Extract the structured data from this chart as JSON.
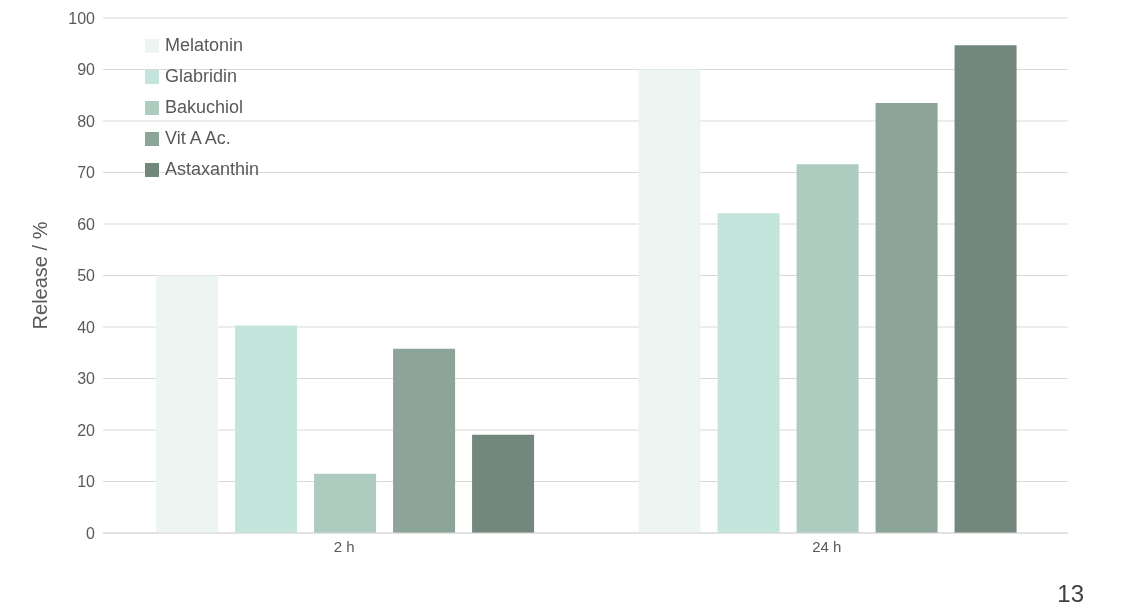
{
  "chart_data": {
    "type": "bar",
    "ylabel": "Release / %",
    "categories": [
      "2 h",
      "24 h"
    ],
    "series": [
      {
        "name": "Melatonin",
        "color": "#edf5f2",
        "values": [
          50,
          90
        ]
      },
      {
        "name": "Glabridin",
        "color": "#c3e5dc",
        "values": [
          40.3,
          62.1
        ]
      },
      {
        "name": "Bakuchiol",
        "color": "#aecbc0",
        "values": [
          11.5,
          71.6
        ]
      },
      {
        "name": "Vit A Ac.",
        "color": "#8ca598",
        "values": [
          35.8,
          83.5
        ]
      },
      {
        "name": "Astaxanthin",
        "color": "#72887c",
        "values": [
          19.1,
          94.7
        ]
      }
    ],
    "ylim": [
      0,
      100
    ],
    "yticks": [
      0,
      10,
      20,
      30,
      40,
      50,
      60,
      70,
      80,
      90,
      100
    ],
    "grid": "y",
    "legend": "top left",
    "annotations": [
      "13"
    ]
  }
}
